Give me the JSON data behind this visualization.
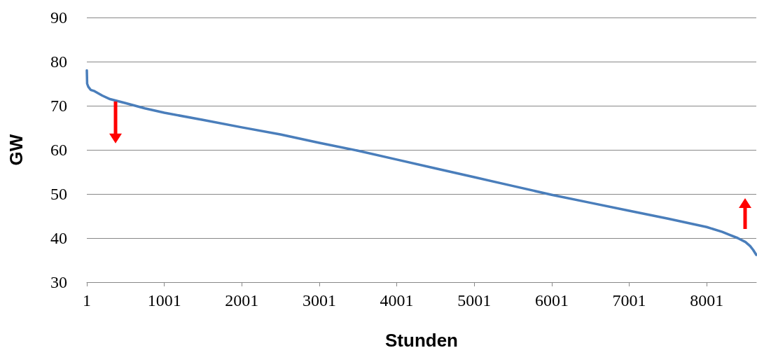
{
  "chart_data": {
    "type": "line",
    "xlabel": "Stunden",
    "ylabel": "GW",
    "x": [
      1,
      5,
      20,
      50,
      100,
      200,
      300,
      500,
      750,
      1001,
      1500,
      2001,
      2500,
      3001,
      3501,
      4001,
      4501,
      5001,
      5501,
      6001,
      6501,
      7001,
      7501,
      8001,
      8201,
      8301,
      8401,
      8501,
      8561,
      8601,
      8641
    ],
    "series": [
      {
        "color": "#4a7ebb",
        "values": [
          78,
          75,
          74.3,
          73.6,
          73.3,
          72.3,
          71.5,
          70.6,
          69.4,
          68.4,
          66.8,
          65.1,
          63.5,
          61.6,
          59.8,
          57.8,
          55.8,
          53.8,
          51.8,
          49.8,
          48,
          46.2,
          44.4,
          42.5,
          41.4,
          40.7,
          40,
          39.1,
          38.2,
          37.3,
          36.2
        ]
      }
    ],
    "xlim": [
      1,
      8641
    ],
    "xticks": [
      1,
      1001,
      2001,
      3001,
      4001,
      5001,
      6001,
      7001,
      8001
    ],
    "ylim": [
      30,
      90
    ],
    "yticks": [
      30,
      40,
      50,
      60,
      70,
      80,
      90
    ],
    "grid": "y",
    "marker": "none",
    "line_style": "solid"
  }
}
